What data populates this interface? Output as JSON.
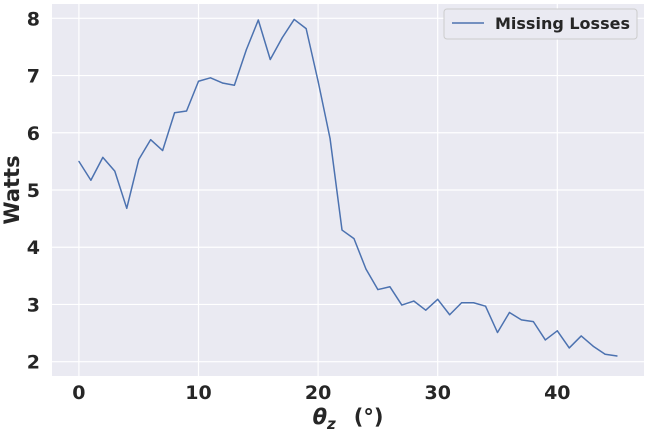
{
  "chart_data": {
    "type": "line",
    "xlabel": "θz (°)",
    "xlabel_parts": {
      "symbol": "θ",
      "subscript": "z",
      "unit": "(°)"
    },
    "ylabel": "Watts",
    "xlim": [
      -2.25,
      47.25
    ],
    "ylim": [
      1.75,
      8.25
    ],
    "xticks": [
      0,
      10,
      20,
      30,
      40
    ],
    "yticks": [
      2,
      3,
      4,
      5,
      6,
      7,
      8
    ],
    "xtick_labels": [
      "0",
      "10",
      "20",
      "30",
      "40"
    ],
    "ytick_labels": [
      "2",
      "3",
      "4",
      "5",
      "6",
      "7",
      "8"
    ],
    "grid": true,
    "legend_position": "top-right",
    "background": "#eaeaf2",
    "series": [
      {
        "name": "Missing Losses",
        "color": "#4c72b0",
        "x": [
          0,
          1,
          2,
          3,
          4,
          5,
          6,
          7,
          8,
          9,
          10,
          11,
          12,
          13,
          14,
          15,
          16,
          17,
          18,
          19,
          20,
          21,
          22,
          23,
          24,
          25,
          26,
          27,
          28,
          29,
          30,
          31,
          32,
          33,
          34,
          35,
          36,
          37,
          38,
          39,
          40,
          41,
          42,
          43,
          44,
          45
        ],
        "y": [
          5.5,
          5.17,
          5.57,
          5.33,
          4.68,
          5.53,
          5.88,
          5.69,
          6.35,
          6.38,
          6.9,
          6.96,
          6.87,
          6.83,
          7.45,
          7.97,
          7.28,
          7.66,
          7.98,
          7.82,
          6.9,
          5.9,
          4.3,
          4.15,
          3.62,
          3.26,
          3.31,
          2.99,
          3.06,
          2.9,
          3.09,
          2.82,
          3.03,
          3.03,
          2.97,
          2.51,
          2.86,
          2.73,
          2.7,
          2.38,
          2.54,
          2.24,
          2.45,
          2.27,
          2.13,
          2.1
        ]
      }
    ]
  }
}
